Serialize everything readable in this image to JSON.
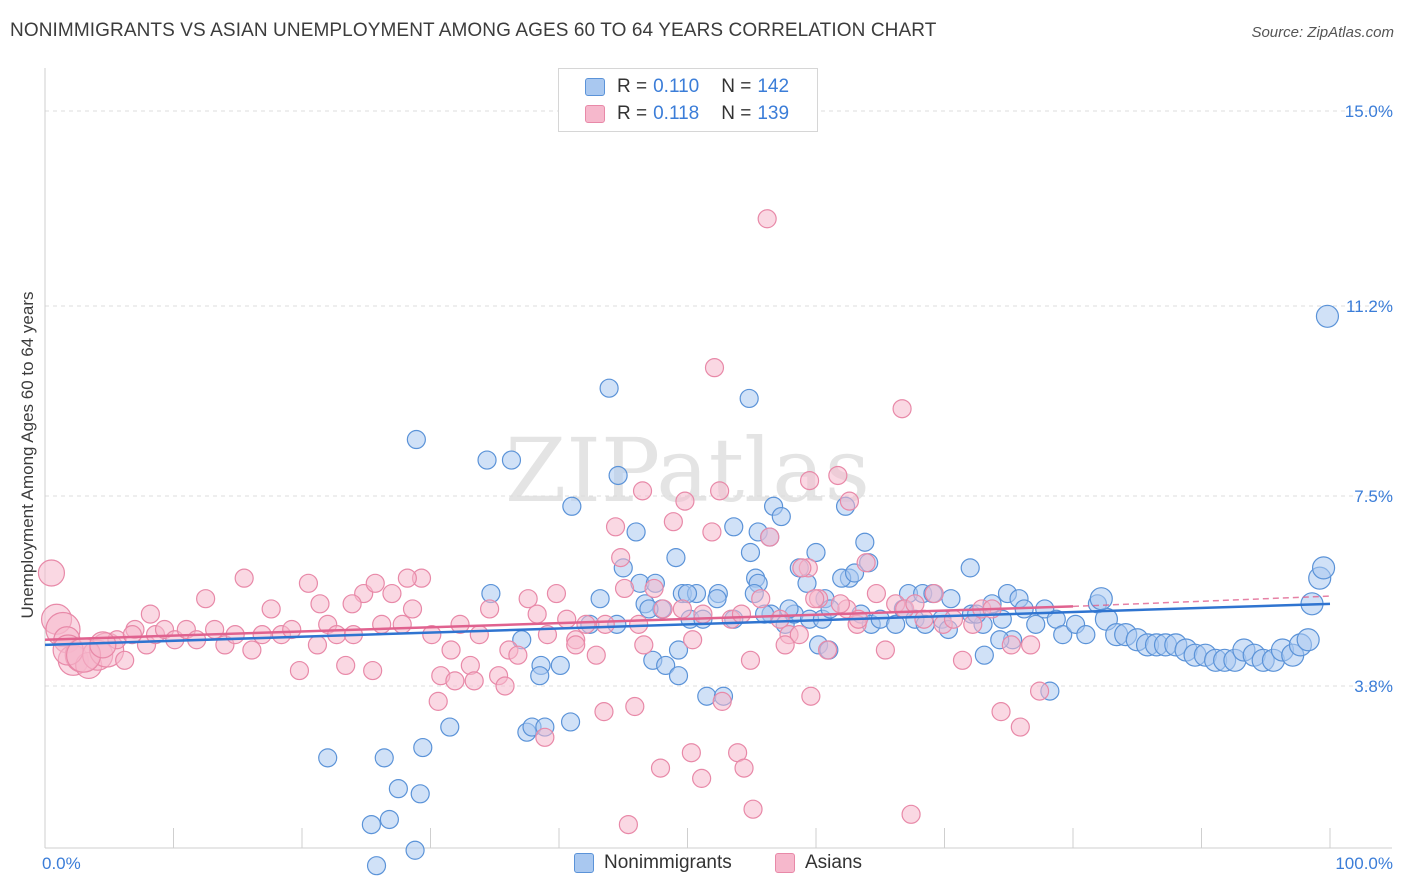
{
  "title": "NONIMMIGRANTS VS ASIAN UNEMPLOYMENT AMONG AGES 60 TO 64 YEARS CORRELATION CHART",
  "source": "Source: ZipAtlas.com",
  "watermark": "ZIPatlas",
  "colors": {
    "blue_fill": "#a9c8f0",
    "blue_stroke": "#5b93d8",
    "blue_line": "#2f74d0",
    "pink_fill": "#f6b8cc",
    "pink_stroke": "#e889a8",
    "pink_line": "#e0628f",
    "tick_text": "#3b7dd8"
  },
  "legend": {
    "rows": [
      {
        "r_label": "R =",
        "r_value": "0.110",
        "n_label": "N =",
        "n_value": "142"
      },
      {
        "r_label": "R =",
        "r_value": "0.118",
        "n_label": "N =",
        "n_value": "139"
      }
    ]
  },
  "bottom_legend": [
    "Nonimmigrants",
    "Asians"
  ],
  "chart_data": {
    "type": "scatter",
    "title": "NONIMMIGRANTS VS ASIAN UNEMPLOYMENT AMONG AGES 60 TO 64 YEARS CORRELATION CHART",
    "xlabel": "",
    "ylabel": "Unemployment Among Ages 60 to 64 years",
    "xlim": [
      0,
      100
    ],
    "ylim": [
      0.8,
      15.7
    ],
    "x_tick_labels": [
      "0.0%",
      "100.0%"
    ],
    "y_ticks": [
      3.8,
      7.5,
      11.2,
      15.0
    ],
    "y_tick_labels": [
      "3.8%",
      "7.5%",
      "11.2%",
      "15.0%"
    ],
    "grid": true,
    "series": [
      {
        "name": "Nonimmigrants",
        "r": 0.11,
        "n": 142,
        "trend": {
          "x": [
            0,
            100
          ],
          "y": [
            4.6,
            5.4
          ]
        },
        "points": [
          [
            22,
            2.4
          ],
          [
            26.4,
            2.4
          ],
          [
            27.5,
            1.8
          ],
          [
            29.2,
            1.7
          ],
          [
            25.4,
            1.1
          ],
          [
            26.8,
            1.2
          ],
          [
            28.8,
            0.6
          ],
          [
            25.8,
            0.3
          ],
          [
            29.4,
            2.6
          ],
          [
            31.5,
            3.0
          ],
          [
            37.5,
            2.9
          ],
          [
            37.9,
            3.0
          ],
          [
            38.9,
            3.0
          ],
          [
            40.9,
            3.1
          ],
          [
            28.9,
            8.6
          ],
          [
            34.4,
            8.2
          ],
          [
            36.3,
            8.2
          ],
          [
            43.9,
            9.6
          ],
          [
            54.8,
            9.4
          ],
          [
            41.0,
            7.3
          ],
          [
            44.6,
            7.9
          ],
          [
            46.0,
            6.8
          ],
          [
            53.6,
            6.9
          ],
          [
            55.5,
            6.8
          ],
          [
            56.4,
            6.7
          ],
          [
            56.7,
            7.3
          ],
          [
            57.3,
            7.1
          ],
          [
            62.3,
            7.3
          ],
          [
            45.0,
            6.1
          ],
          [
            46.3,
            5.8
          ],
          [
            47.5,
            5.8
          ],
          [
            49.1,
            6.3
          ],
          [
            49.6,
            5.6
          ],
          [
            50.7,
            5.6
          ],
          [
            52.4,
            5.6
          ],
          [
            54.9,
            6.4
          ],
          [
            55.3,
            5.9
          ],
          [
            58.7,
            6.1
          ],
          [
            60.0,
            6.4
          ],
          [
            60.7,
            5.5
          ],
          [
            62.6,
            5.9
          ],
          [
            64.1,
            6.2
          ],
          [
            63.8,
            6.6
          ],
          [
            67.2,
            5.6
          ],
          [
            68.3,
            5.6
          ],
          [
            70.5,
            5.5
          ],
          [
            72.0,
            6.1
          ],
          [
            74.9,
            5.6
          ],
          [
            75.8,
            5.5
          ],
          [
            34.7,
            5.6
          ],
          [
            37.1,
            4.7
          ],
          [
            38.6,
            4.2
          ],
          [
            38.5,
            4.0
          ],
          [
            40.1,
            4.2
          ],
          [
            46.7,
            5.4
          ],
          [
            47.3,
            4.3
          ],
          [
            48.3,
            4.2
          ],
          [
            49.3,
            4.5
          ],
          [
            49.3,
            4.0
          ],
          [
            50.2,
            5.1
          ],
          [
            51.2,
            5.1
          ],
          [
            51.5,
            3.6
          ],
          [
            52.8,
            3.6
          ],
          [
            53.6,
            5.1
          ],
          [
            55.5,
            5.8
          ],
          [
            56.5,
            5.2
          ],
          [
            57.6,
            5.0
          ],
          [
            58.3,
            5.2
          ],
          [
            59.5,
            5.1
          ],
          [
            60.5,
            5.1
          ],
          [
            61.1,
            5.3
          ],
          [
            63.5,
            5.2
          ],
          [
            64.3,
            5.0
          ],
          [
            65.0,
            5.1
          ],
          [
            66.2,
            5.0
          ],
          [
            66.8,
            5.3
          ],
          [
            67.7,
            5.1
          ],
          [
            68.5,
            5.0
          ],
          [
            69.8,
            5.1
          ],
          [
            70.3,
            4.9
          ],
          [
            72.1,
            5.2
          ],
          [
            73.0,
            5.0
          ],
          [
            73.7,
            5.4
          ],
          [
            74.5,
            5.1
          ],
          [
            75.3,
            4.7
          ],
          [
            76.2,
            5.3
          ],
          [
            77.1,
            5.0
          ],
          [
            77.8,
            5.3
          ],
          [
            78.7,
            5.1
          ],
          [
            79.2,
            4.8
          ],
          [
            80.2,
            5.0
          ],
          [
            81.0,
            4.8
          ],
          [
            81.9,
            5.4
          ],
          [
            82.6,
            5.1
          ],
          [
            83.4,
            4.8
          ],
          [
            84.1,
            4.8
          ],
          [
            85.0,
            4.7
          ],
          [
            85.8,
            4.6
          ],
          [
            86.5,
            4.6
          ],
          [
            87.2,
            4.6
          ],
          [
            88.0,
            4.6
          ],
          [
            88.8,
            4.5
          ],
          [
            89.5,
            4.4
          ],
          [
            90.3,
            4.4
          ],
          [
            91.1,
            4.3
          ],
          [
            91.8,
            4.3
          ],
          [
            92.6,
            4.3
          ],
          [
            93.3,
            4.5
          ],
          [
            94.1,
            4.4
          ],
          [
            94.8,
            4.3
          ],
          [
            95.6,
            4.3
          ],
          [
            96.3,
            4.5
          ],
          [
            97.1,
            4.4
          ],
          [
            97.7,
            4.6
          ],
          [
            98.3,
            4.7
          ],
          [
            98.6,
            5.4
          ],
          [
            99.2,
            5.9
          ],
          [
            99.5,
            6.1
          ],
          [
            78.2,
            3.7
          ],
          [
            73.1,
            4.4
          ],
          [
            74.3,
            4.7
          ],
          [
            60.2,
            4.6
          ],
          [
            61.0,
            4.5
          ],
          [
            55.2,
            5.6
          ],
          [
            57.9,
            5.3
          ],
          [
            52.3,
            5.5
          ],
          [
            62.0,
            5.9
          ],
          [
            63.0,
            6.0
          ],
          [
            59.3,
            5.8
          ],
          [
            50.0,
            5.6
          ],
          [
            48.0,
            5.3
          ],
          [
            47.0,
            5.3
          ],
          [
            44.5,
            5.0
          ],
          [
            42.4,
            5.0
          ],
          [
            43.2,
            5.5
          ],
          [
            56.0,
            5.2
          ],
          [
            69.1,
            5.6
          ],
          [
            72.5,
            5.2
          ],
          [
            82.2,
            5.5
          ],
          [
            99.8,
            11.0
          ]
        ]
      },
      {
        "name": "Asians",
        "r": 0.118,
        "n": 139,
        "trend": {
          "x": [
            0,
            80
          ],
          "y": [
            4.7,
            5.35
          ]
        },
        "trend_dashed": {
          "x": [
            80,
            100
          ],
          "y": [
            5.35,
            5.55
          ]
        },
        "points": [
          [
            0.5,
            6.0
          ],
          [
            0.9,
            5.1
          ],
          [
            1.4,
            4.9
          ],
          [
            1.7,
            4.7
          ],
          [
            2.2,
            4.3
          ],
          [
            2.9,
            4.4
          ],
          [
            3.4,
            4.2
          ],
          [
            4.1,
            4.4
          ],
          [
            4.8,
            4.5
          ],
          [
            5.6,
            4.7
          ],
          [
            6.2,
            4.3
          ],
          [
            7.0,
            4.9
          ],
          [
            7.9,
            4.6
          ],
          [
            8.6,
            4.8
          ],
          [
            9.3,
            4.9
          ],
          [
            10.1,
            4.7
          ],
          [
            11.0,
            4.9
          ],
          [
            11.8,
            4.7
          ],
          [
            12.5,
            5.5
          ],
          [
            13.2,
            4.9
          ],
          [
            14.0,
            4.6
          ],
          [
            14.8,
            4.8
          ],
          [
            15.5,
            5.9
          ],
          [
            16.1,
            4.5
          ],
          [
            16.9,
            4.8
          ],
          [
            17.6,
            5.3
          ],
          [
            18.4,
            4.8
          ],
          [
            19.2,
            4.9
          ],
          [
            19.8,
            4.1
          ],
          [
            20.5,
            5.8
          ],
          [
            21.2,
            4.6
          ],
          [
            22.0,
            5.0
          ],
          [
            22.7,
            4.8
          ],
          [
            23.4,
            4.2
          ],
          [
            24.0,
            4.8
          ],
          [
            24.8,
            5.6
          ],
          [
            25.5,
            4.1
          ],
          [
            26.2,
            5.0
          ],
          [
            27.0,
            5.6
          ],
          [
            27.8,
            5.0
          ],
          [
            28.6,
            5.3
          ],
          [
            29.3,
            5.9
          ],
          [
            30.1,
            4.8
          ],
          [
            30.8,
            4.0
          ],
          [
            31.6,
            4.5
          ],
          [
            32.3,
            5.0
          ],
          [
            33.1,
            4.2
          ],
          [
            33.8,
            4.8
          ],
          [
            34.6,
            5.3
          ],
          [
            35.3,
            4.0
          ],
          [
            36.1,
            4.5
          ],
          [
            36.8,
            4.4
          ],
          [
            37.6,
            5.5
          ],
          [
            38.3,
            5.2
          ],
          [
            39.1,
            4.8
          ],
          [
            39.8,
            5.6
          ],
          [
            40.6,
            5.1
          ],
          [
            41.3,
            4.7
          ],
          [
            42.1,
            5.0
          ],
          [
            42.9,
            4.4
          ],
          [
            43.6,
            5.0
          ],
          [
            44.4,
            6.9
          ],
          [
            45.1,
            5.7
          ],
          [
            45.9,
            3.4
          ],
          [
            46.6,
            4.6
          ],
          [
            47.4,
            5.7
          ],
          [
            48.1,
            5.3
          ],
          [
            48.9,
            7.0
          ],
          [
            49.6,
            5.3
          ],
          [
            50.4,
            4.7
          ],
          [
            51.2,
            5.2
          ],
          [
            51.9,
            6.8
          ],
          [
            52.7,
            3.5
          ],
          [
            53.4,
            5.1
          ],
          [
            54.2,
            5.2
          ],
          [
            54.9,
            4.3
          ],
          [
            55.7,
            5.5
          ],
          [
            56.4,
            6.7
          ],
          [
            57.2,
            5.1
          ],
          [
            57.9,
            4.8
          ],
          [
            58.7,
            4.8
          ],
          [
            59.4,
            6.1
          ],
          [
            60.2,
            5.5
          ],
          [
            60.9,
            4.5
          ],
          [
            61.7,
            7.9
          ],
          [
            62.4,
            5.3
          ],
          [
            63.2,
            5.0
          ],
          [
            63.9,
            6.2
          ],
          [
            64.7,
            5.6
          ],
          [
            65.4,
            4.5
          ],
          [
            66.2,
            5.4
          ],
          [
            66.9,
            5.3
          ],
          [
            67.7,
            5.4
          ],
          [
            68.4,
            5.1
          ],
          [
            69.2,
            5.6
          ],
          [
            69.9,
            5.0
          ],
          [
            70.7,
            5.1
          ],
          [
            71.4,
            4.3
          ],
          [
            72.2,
            5.0
          ],
          [
            72.9,
            5.3
          ],
          [
            73.7,
            5.3
          ],
          [
            74.4,
            3.3
          ],
          [
            75.2,
            4.6
          ],
          [
            75.9,
            3.0
          ],
          [
            76.7,
            4.6
          ],
          [
            77.4,
            3.7
          ],
          [
            1.8,
            4.5
          ],
          [
            3.0,
            4.4
          ],
          [
            4.5,
            4.6
          ],
          [
            6.8,
            4.8
          ],
          [
            8.2,
            5.2
          ],
          [
            21.4,
            5.4
          ],
          [
            23.9,
            5.4
          ],
          [
            25.7,
            5.8
          ],
          [
            28.2,
            5.9
          ],
          [
            30.6,
            3.5
          ],
          [
            31.9,
            3.9
          ],
          [
            33.4,
            3.9
          ],
          [
            35.8,
            3.8
          ],
          [
            38.9,
            2.8
          ],
          [
            41.3,
            4.6
          ],
          [
            43.5,
            3.3
          ],
          [
            44.8,
            6.3
          ],
          [
            46.2,
            5.0
          ],
          [
            47.9,
            2.2
          ],
          [
            50.3,
            2.5
          ],
          [
            51.1,
            2.0
          ],
          [
            53.9,
            2.5
          ],
          [
            54.4,
            2.2
          ],
          [
            55.1,
            1.4
          ],
          [
            57.6,
            4.6
          ],
          [
            58.9,
            6.1
          ],
          [
            59.6,
            3.6
          ],
          [
            59.9,
            5.5
          ],
          [
            61.9,
            5.4
          ],
          [
            63.3,
            5.1
          ],
          [
            67.4,
            1.3
          ],
          [
            45.4,
            1.1
          ],
          [
            49.8,
            7.4
          ],
          [
            52.5,
            7.6
          ],
          [
            59.5,
            7.8
          ],
          [
            66.7,
            9.2
          ],
          [
            56.2,
            12.9
          ],
          [
            52.1,
            10.0
          ],
          [
            62.6,
            7.4
          ],
          [
            46.5,
            7.6
          ]
        ]
      }
    ]
  }
}
